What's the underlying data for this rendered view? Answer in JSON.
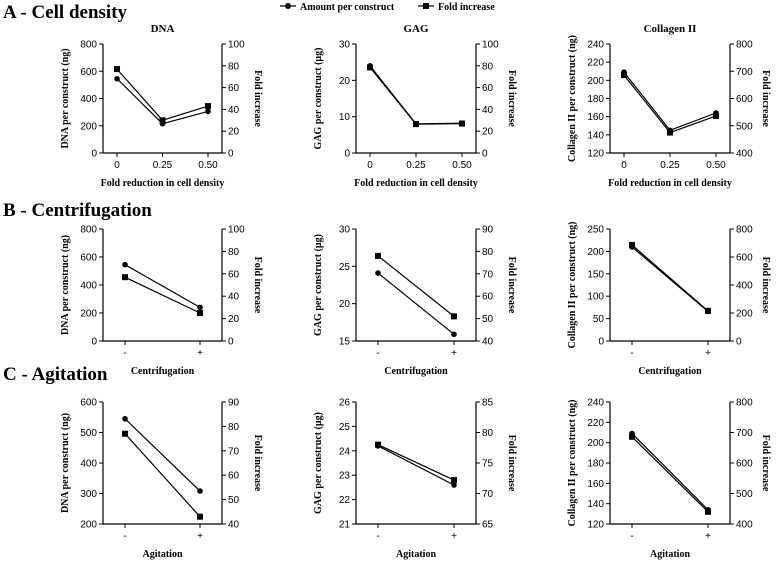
{
  "legend": {
    "amount_label": "Amount per construct",
    "fold_label": "Fold increase",
    "amount_marker": "circle",
    "fold_marker": "square"
  },
  "colors": {
    "line": "#000000",
    "background": "#ffffff"
  },
  "sections": [
    {
      "title": "A - Cell density"
    },
    {
      "title": "B - Centrifugation"
    },
    {
      "title": "C - Agitation"
    }
  ],
  "chart_data": [
    {
      "type": "line",
      "section": "A - Cell density",
      "title": "DNA",
      "categories": [
        "0",
        "0.25",
        "0.50"
      ],
      "xlabel": "Fold reduction in cell density",
      "ylabel": "DNA per construct (ng)",
      "ylim": [
        0,
        800
      ],
      "yticks": [
        0,
        200,
        400,
        600,
        800
      ],
      "y2label": "Fold increase",
      "y2lim": [
        0,
        100
      ],
      "y2ticks": [
        0,
        20,
        40,
        60,
        80,
        100
      ],
      "series": [
        {
          "name": "Amount per construct",
          "axis": "left",
          "marker": "circle",
          "values": [
            545,
            215,
            305
          ]
        },
        {
          "name": "Fold increase",
          "axis": "right",
          "marker": "square",
          "values": [
            77,
            30,
            43
          ]
        }
      ]
    },
    {
      "type": "line",
      "section": "A - Cell density",
      "title": "GAG",
      "categories": [
        "0",
        "0.25",
        "0.50"
      ],
      "xlabel": "Fold reduction in cell density",
      "ylabel": "GAG per construct (μg)",
      "ylim": [
        0,
        30
      ],
      "yticks": [
        0,
        10,
        20,
        30
      ],
      "y2label": "Fold increase",
      "y2lim": [
        0,
        100
      ],
      "y2ticks": [
        0,
        20,
        40,
        60,
        80,
        100
      ],
      "series": [
        {
          "name": "Amount per construct",
          "axis": "left",
          "marker": "circle",
          "values": [
            24.0,
            8.0,
            8.2
          ]
        },
        {
          "name": "Fold increase",
          "axis": "right",
          "marker": "square",
          "values": [
            78.5,
            26.5,
            27
          ]
        }
      ]
    },
    {
      "type": "line",
      "section": "A - Cell density",
      "title": "Collagen II",
      "categories": [
        "0",
        "0.25",
        "0.50"
      ],
      "xlabel": "Fold reduction in cell density",
      "ylabel": "Collagen II per construct (ng)",
      "ylim": [
        120,
        240
      ],
      "yticks": [
        120,
        140,
        160,
        180,
        200,
        220,
        240
      ],
      "y2label": "Fold increase",
      "y2lim": [
        400,
        800
      ],
      "y2ticks": [
        400,
        500,
        600,
        700,
        800
      ],
      "series": [
        {
          "name": "Amount per construct",
          "axis": "left",
          "marker": "circle",
          "values": [
            209,
            145,
            164
          ]
        },
        {
          "name": "Fold increase",
          "axis": "right",
          "marker": "square",
          "values": [
            686,
            475,
            536
          ]
        }
      ]
    },
    {
      "type": "line",
      "section": "B - Centrifugation",
      "title": "",
      "categories": [
        "-",
        "+"
      ],
      "xlabel": "Centrifugation",
      "ylabel": "DNA per construct (ng)",
      "ylim": [
        0,
        800
      ],
      "yticks": [
        0,
        200,
        400,
        600,
        800
      ],
      "y2label": "Fold increase",
      "y2lim": [
        0,
        100
      ],
      "y2ticks": [
        0,
        20,
        40,
        60,
        80,
        100
      ],
      "series": [
        {
          "name": "Amount per construct",
          "axis": "left",
          "marker": "circle",
          "values": [
            545,
            240
          ]
        },
        {
          "name": "Fold increase",
          "axis": "right",
          "marker": "square",
          "values": [
            57,
            25
          ]
        }
      ]
    },
    {
      "type": "line",
      "section": "B - Centrifugation",
      "title": "",
      "categories": [
        "-",
        "+"
      ],
      "xlabel": "Centrifugation",
      "ylabel": "GAG per construct (μg)",
      "ylim": [
        15,
        30
      ],
      "yticks": [
        15,
        20,
        25,
        30
      ],
      "y2label": "Fold increase",
      "y2lim": [
        40,
        90
      ],
      "y2ticks": [
        40,
        50,
        60,
        70,
        80,
        90
      ],
      "series": [
        {
          "name": "Amount per construct",
          "axis": "left",
          "marker": "circle",
          "values": [
            24.1,
            15.9
          ]
        },
        {
          "name": "Fold increase",
          "axis": "right",
          "marker": "square",
          "values": [
            78,
            51
          ]
        }
      ]
    },
    {
      "type": "line",
      "section": "B - Centrifugation",
      "title": "",
      "categories": [
        "-",
        "+"
      ],
      "xlabel": "Centrifugation",
      "ylabel": "Collagen II per construct (ng)",
      "ylim": [
        0,
        250
      ],
      "yticks": [
        0,
        50,
        100,
        150,
        200,
        250
      ],
      "y2label": "Fold increase",
      "y2lim": [
        0,
        800
      ],
      "y2ticks": [
        0,
        200,
        400,
        600,
        800
      ],
      "series": [
        {
          "name": "Amount per construct",
          "axis": "left",
          "marker": "circle",
          "values": [
            210,
            66
          ]
        },
        {
          "name": "Fold increase",
          "axis": "right",
          "marker": "square",
          "values": [
            686,
            215
          ]
        }
      ]
    },
    {
      "type": "line",
      "section": "C - Agitation",
      "title": "",
      "categories": [
        "-",
        "+"
      ],
      "xlabel": "Agitation",
      "ylabel": "DNA per construct (ng)",
      "ylim": [
        200,
        600
      ],
      "yticks": [
        200,
        300,
        400,
        500,
        600
      ],
      "y2label": "Fold increase",
      "y2lim": [
        40,
        90
      ],
      "y2ticks": [
        40,
        50,
        60,
        70,
        80,
        90
      ],
      "series": [
        {
          "name": "Amount per construct",
          "axis": "left",
          "marker": "circle",
          "values": [
            545,
            308
          ]
        },
        {
          "name": "Fold increase",
          "axis": "right",
          "marker": "square",
          "values": [
            77,
            43
          ]
        }
      ]
    },
    {
      "type": "line",
      "section": "C - Agitation",
      "title": "",
      "categories": [
        "-",
        "+"
      ],
      "xlabel": "Agitation",
      "ylabel": "GAG per construct (μg)",
      "ylim": [
        21,
        26
      ],
      "yticks": [
        21,
        22,
        23,
        24,
        25,
        26
      ],
      "y2label": "Fold increase",
      "y2lim": [
        65,
        85
      ],
      "y2ticks": [
        65,
        70,
        75,
        80,
        85
      ],
      "series": [
        {
          "name": "Amount per construct",
          "axis": "left",
          "marker": "circle",
          "values": [
            24.2,
            22.6
          ]
        },
        {
          "name": "Fold increase",
          "axis": "right",
          "marker": "square",
          "values": [
            78,
            72.2
          ]
        }
      ]
    },
    {
      "type": "line",
      "section": "C - Agitation",
      "title": "",
      "categories": [
        "-",
        "+"
      ],
      "xlabel": "Agitation",
      "ylabel": "Collagen II per construct (ng)",
      "ylim": [
        120,
        240
      ],
      "yticks": [
        120,
        140,
        160,
        180,
        200,
        220,
        240
      ],
      "y2label": "Fold increase",
      "y2lim": [
        400,
        800
      ],
      "y2ticks": [
        400,
        500,
        600,
        700,
        800
      ],
      "series": [
        {
          "name": "Amount per construct",
          "axis": "left",
          "marker": "circle",
          "values": [
            209,
            134
          ]
        },
        {
          "name": "Fold increase",
          "axis": "right",
          "marker": "square",
          "values": [
            686,
            440
          ]
        }
      ]
    }
  ]
}
